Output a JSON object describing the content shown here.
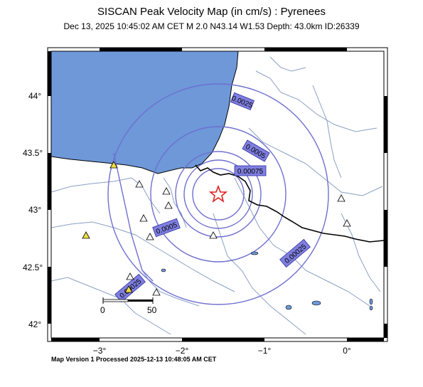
{
  "header": {
    "title": "SISCAN Peak Velocity Map (in cm/s) : Pyrenees",
    "subtitle": "Dec 13, 2025 10:45:02 AM CET   M 2.0   N43.14 W1.53   Depth: 43.0km   ID:26339"
  },
  "axes": {
    "lat_ticks": [
      "44°",
      "43.5°",
      "43°",
      "42.5°",
      "42°"
    ],
    "lon_ticks": [
      "−3°",
      "−2°",
      "−1°",
      "0°"
    ]
  },
  "contours": {
    "labels": [
      "0.0025",
      "0.0005",
      "0.00075",
      "0.0005",
      "0.00025",
      "0.00025"
    ]
  },
  "scale_bar": {
    "label_start": "0",
    "label_end": "50"
  },
  "epicenter": {
    "icon": "star-icon",
    "color": "#e02020"
  },
  "colors": {
    "sea": "#6e98d8",
    "contour": "#6f6fd0",
    "label_bg": "#7f7fe0",
    "rivers": "#8a9fc4",
    "border": "#000000"
  },
  "footer": {
    "text": "Map Version 1 Processed 2025-12-13 10:48:05 AM CET"
  }
}
